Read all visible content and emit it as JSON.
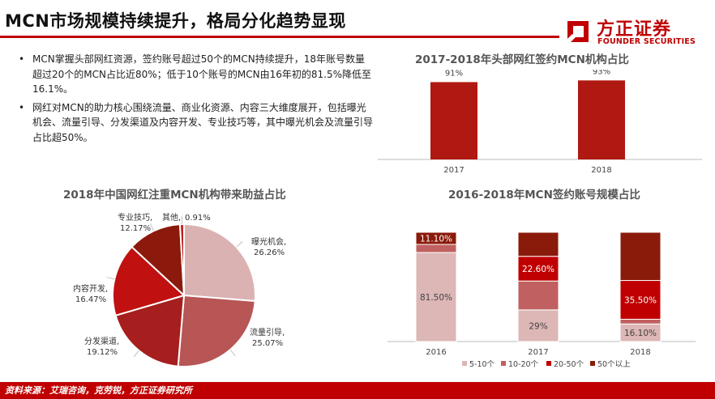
{
  "header": {
    "title": "MCN市场规模持续提升，格局分化趋势显现",
    "logo_cn": "方正证券",
    "logo_en": "FOUNDER SECURITIES"
  },
  "bullets": [
    "MCN掌握头部网红资源，签约账号超过50个的MCN持续提升，18年账号数量超过20个的MCN占比近80%；低于10个账号的MCN由16年初的81.5%降低至16.1%。",
    "网红对MCN的助力核心围绕流量、商业化资源、内容三大维度展开，包括曝光机会、流量引导、分发渠道及内容开发、专业技巧等，其中曝光机会及流量引导占比超50%。"
  ],
  "footer": {
    "source": "资料来源：艾瑞咨询，克劳锐，方正证券研究所"
  },
  "colors": {
    "accent": "#c00000"
  },
  "chart_data": [
    {
      "type": "bar",
      "title": "2017-2018年头部网红签约MCN机构占比",
      "categories": [
        "2017",
        "2018"
      ],
      "values": [
        91,
        93
      ],
      "labels": [
        "91%",
        "93%"
      ],
      "ylim": [
        0,
        100
      ],
      "color": "#b01812"
    },
    {
      "type": "pie",
      "title": "2018年中国网红注重MCN机构带来助益占比",
      "slices": [
        {
          "name": "曝光机会,",
          "value": 26.26,
          "label": "26.26%",
          "color": "#dbb2b2"
        },
        {
          "name": "流量引导,",
          "value": 25.07,
          "label": "25.07%",
          "color": "#b85555"
        },
        {
          "name": "分发渠道,",
          "value": 19.12,
          "label": "19.12%",
          "color": "#a61e1e"
        },
        {
          "name": "内容开发,",
          "value": 16.47,
          "label": "16.47%",
          "color": "#c01010"
        },
        {
          "name": "专业技巧,",
          "value": 12.17,
          "label": "12.17%",
          "color": "#8b1a0c"
        },
        {
          "name": "其他,",
          "value": 0.91,
          "label": "0.91%",
          "color": "#c41a1a"
        }
      ]
    },
    {
      "type": "bar",
      "stacked": true,
      "title": "2016-2018年MCN签约账号规模占比",
      "categories": [
        "2016",
        "2017",
        "2018"
      ],
      "series": [
        {
          "name": "5-10个",
          "color": "#ddb6b6",
          "values": [
            81.5,
            29,
            16.1
          ],
          "labels": [
            "81.50%",
            "29%",
            "16.10%"
          ]
        },
        {
          "name": "10-20个",
          "color": "#c06060",
          "values": [
            7.4,
            26.4,
            4.3
          ],
          "labels": [
            "",
            "",
            ""
          ]
        },
        {
          "name": "20-50个",
          "color": "#c00000",
          "values": [
            0,
            22.6,
            35.5
          ],
          "labels": [
            "",
            "22.60%",
            "35.50%"
          ]
        },
        {
          "name": "50个以上",
          "color": "#8a1a0a",
          "values": [
            11.1,
            22,
            44.1
          ],
          "labels": [
            "11.10%",
            "",
            ""
          ]
        }
      ],
      "ylim": [
        0,
        100
      ],
      "legend": "bottom"
    }
  ]
}
